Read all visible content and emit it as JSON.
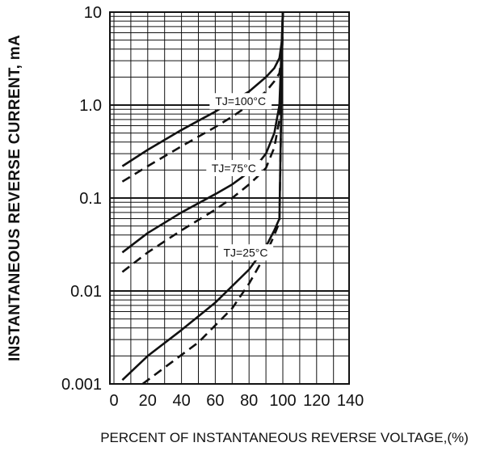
{
  "chart_data": {
    "type": "line",
    "title": "",
    "xlabel": "PERCENT OF INSTANTANEOUS REVERSE VOLTAGE,(%)",
    "ylabel": "INSTANTANEOUS REVERSE CURRENT, mA",
    "xlim": [
      0,
      140
    ],
    "ylim": [
      0.001,
      10
    ],
    "yscale": "log",
    "x_ticks": [
      "0",
      "20",
      "40",
      "60",
      "80",
      "100",
      "120",
      "140"
    ],
    "y_ticks": [
      "0.001",
      "0.01",
      "0.1",
      "1.0",
      "10"
    ],
    "grid": true,
    "series": [
      {
        "style": "solid",
        "x": [
          5,
          20,
          40,
          60,
          70,
          80,
          90,
          95,
          98,
          99.5,
          100
        ],
        "y": [
          0.22,
          0.33,
          0.54,
          0.85,
          1.1,
          1.4,
          2.0,
          2.5,
          3.2,
          5.0,
          10
        ]
      },
      {
        "style": "dashed",
        "x": [
          5,
          20,
          40,
          60,
          70,
          80,
          90,
          95,
          98,
          99.5,
          100
        ],
        "y": [
          0.15,
          0.22,
          0.36,
          0.58,
          0.75,
          1.0,
          1.4,
          1.8,
          2.2,
          3.5,
          10
        ]
      },
      {
        "style": "solid",
        "x": [
          5,
          20,
          40,
          60,
          70,
          80,
          85,
          90,
          95,
          98,
          100
        ],
        "y": [
          0.026,
          0.042,
          0.07,
          0.11,
          0.14,
          0.19,
          0.23,
          0.3,
          0.5,
          1.0,
          10
        ]
      },
      {
        "style": "dashed",
        "x": [
          5,
          20,
          40,
          60,
          70,
          80,
          85,
          90,
          95,
          98,
          100
        ],
        "y": [
          0.016,
          0.026,
          0.045,
          0.075,
          0.1,
          0.14,
          0.17,
          0.21,
          0.35,
          0.7,
          10
        ]
      },
      {
        "style": "solid",
        "x": [
          5,
          20,
          40,
          60,
          80,
          90,
          95,
          98,
          100
        ],
        "y": [
          0.0011,
          0.002,
          0.0038,
          0.0075,
          0.017,
          0.03,
          0.045,
          0.06,
          10
        ]
      },
      {
        "style": "dashed",
        "x": [
          17,
          30,
          50,
          70,
          80,
          90,
          95,
          98,
          100
        ],
        "y": [
          0.001,
          0.0015,
          0.0028,
          0.0065,
          0.012,
          0.025,
          0.04,
          0.055,
          10
        ]
      }
    ],
    "annotations": [
      {
        "text": "TJ=100°C",
        "x": 75,
        "y": 1.1
      },
      {
        "text": "TJ=75°C",
        "x": 71,
        "y": 0.21
      },
      {
        "text": "TJ=25°C",
        "x": 78,
        "y": 0.026
      }
    ]
  }
}
